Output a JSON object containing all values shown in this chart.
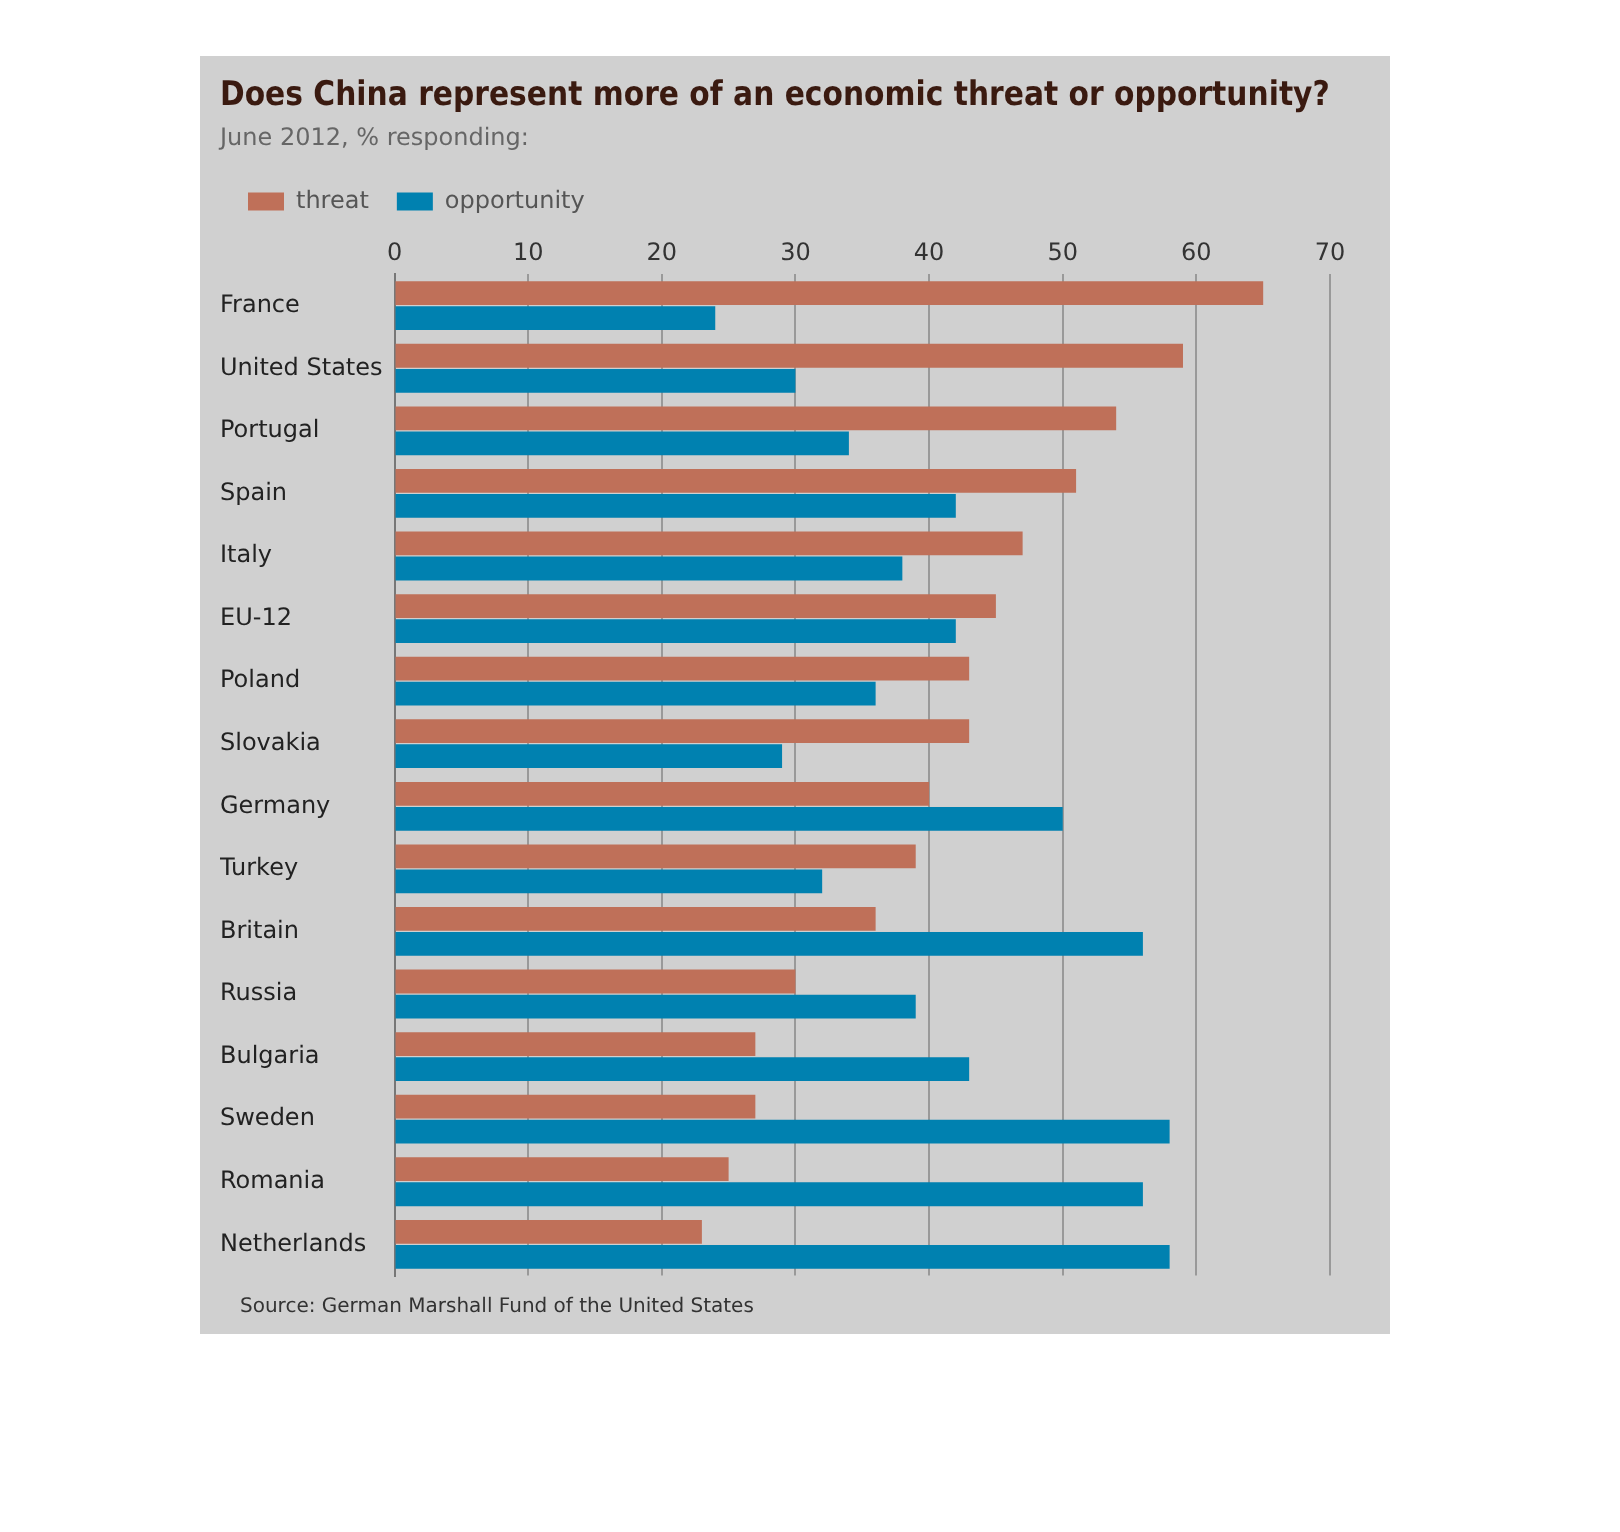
{
  "chart_data": {
    "type": "bar",
    "orientation": "horizontal",
    "title": "Does China represent more of an economic threat or opportunity?",
    "subtitle": "June 2012, % responding:",
    "categories": [
      "France",
      "United States",
      "Portugal",
      "Spain",
      "Italy",
      "EU-12",
      "Poland",
      "Slovakia",
      "Germany",
      "Turkey",
      "Britain",
      "Russia",
      "Bulgaria",
      "Sweden",
      "Romania",
      "Netherlands"
    ],
    "series": [
      {
        "name": "threat",
        "color": "#bf7059",
        "values": [
          65,
          59,
          54,
          51,
          47,
          45,
          43,
          43,
          40,
          39,
          36,
          30,
          27,
          27,
          25,
          23
        ]
      },
      {
        "name": "opportunity",
        "color": "#0081b0",
        "values": [
          24,
          30,
          34,
          42,
          38,
          42,
          36,
          29,
          50,
          32,
          56,
          39,
          43,
          58,
          56,
          58
        ]
      }
    ],
    "xlim": [
      0,
      70
    ],
    "xticks": [
      0,
      10,
      20,
      30,
      40,
      50,
      60,
      70
    ],
    "grid": "x",
    "legend": "top left",
    "annotations": [
      "Source: German Marshall Fund of the United States"
    ]
  }
}
